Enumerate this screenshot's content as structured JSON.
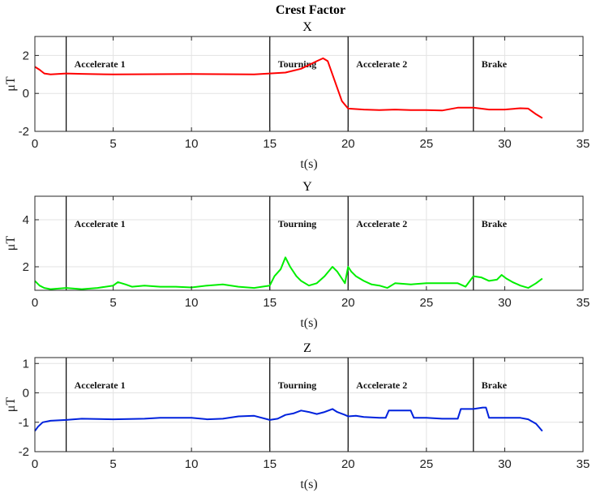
{
  "title": "Crest Factor",
  "chart_data": [
    {
      "type": "line",
      "subplot_title": "X",
      "xlabel": "t(s)",
      "ylabel": "μT",
      "xlim": [
        0,
        35
      ],
      "ylim": [
        -2,
        3
      ],
      "xticks": [
        0,
        5,
        10,
        15,
        20,
        25,
        30,
        35
      ],
      "yticks": [
        -2,
        0,
        2
      ],
      "grid": true,
      "color": "#ff0000",
      "vlines": [
        2,
        15,
        20,
        28
      ],
      "annotations": [
        "Accelerate 1",
        "Tourning",
        "Accelerate 2",
        "Brake"
      ],
      "x": [
        0,
        0.3,
        0.6,
        1,
        2,
        3,
        5,
        10,
        14,
        15,
        16,
        17,
        17.5,
        18,
        18.4,
        18.7,
        19,
        19.3,
        19.6,
        20,
        21,
        22,
        23,
        24,
        25,
        26,
        27,
        28,
        29,
        30,
        31,
        31.5,
        32,
        32.4
      ],
      "y": [
        1.4,
        1.25,
        1.05,
        1.0,
        1.05,
        1.03,
        1.0,
        1.02,
        1.0,
        1.05,
        1.1,
        1.3,
        1.5,
        1.7,
        1.85,
        1.7,
        1.0,
        0.3,
        -0.4,
        -0.8,
        -0.85,
        -0.88,
        -0.85,
        -0.88,
        -0.88,
        -0.9,
        -0.75,
        -0.75,
        -0.85,
        -0.85,
        -0.78,
        -0.8,
        -1.1,
        -1.3
      ]
    },
    {
      "type": "line",
      "subplot_title": "Y",
      "xlabel": "t(s)",
      "ylabel": "μT",
      "xlim": [
        0,
        35
      ],
      "ylim": [
        1,
        5
      ],
      "xticks": [
        0,
        5,
        10,
        15,
        20,
        25,
        30,
        35
      ],
      "yticks": [
        2,
        4
      ],
      "grid": true,
      "color": "#00ee00",
      "vlines": [
        2,
        15,
        20,
        28
      ],
      "annotations": [
        "Accelerate 1",
        "Tourning",
        "Accelerate 2",
        "Brake"
      ],
      "x": [
        0,
        0.3,
        0.6,
        1,
        2,
        3,
        4,
        5,
        5.3,
        5.8,
        6.2,
        7,
        8,
        9,
        10,
        11,
        12,
        13,
        14,
        14.5,
        15,
        15.3,
        15.7,
        16.0,
        16.3,
        16.7,
        17,
        17.5,
        18,
        18.5,
        19,
        19.3,
        19.6,
        19.8,
        20,
        20.2,
        20.5,
        21,
        21.5,
        22,
        22.5,
        23,
        24,
        25,
        26,
        27,
        27.5,
        28,
        28.5,
        29,
        29.5,
        29.8,
        30.1,
        30.5,
        31,
        31.5,
        32,
        32.4
      ],
      "y": [
        1.4,
        1.2,
        1.1,
        1.05,
        1.1,
        1.05,
        1.1,
        1.2,
        1.35,
        1.25,
        1.15,
        1.2,
        1.15,
        1.15,
        1.12,
        1.2,
        1.25,
        1.15,
        1.1,
        1.15,
        1.2,
        1.6,
        1.9,
        2.4,
        2.0,
        1.6,
        1.4,
        1.2,
        1.3,
        1.6,
        2.0,
        1.8,
        1.5,
        1.3,
        2.0,
        1.8,
        1.6,
        1.4,
        1.25,
        1.2,
        1.1,
        1.3,
        1.25,
        1.3,
        1.3,
        1.3,
        1.15,
        1.6,
        1.55,
        1.4,
        1.45,
        1.65,
        1.5,
        1.35,
        1.2,
        1.1,
        1.3,
        1.5
      ]
    },
    {
      "type": "line",
      "subplot_title": "Z",
      "xlabel": "t(s)",
      "ylabel": "μT",
      "xlim": [
        0,
        35
      ],
      "ylim": [
        -2,
        1.2
      ],
      "xticks": [
        0,
        5,
        10,
        15,
        20,
        25,
        30,
        35
      ],
      "yticks": [
        -2,
        -1,
        0,
        1
      ],
      "grid": true,
      "color": "#0022dd",
      "vlines": [
        2,
        15,
        20,
        28
      ],
      "annotations": [
        "Accelerate 1",
        "Tourning",
        "Accelerate 2",
        "Brake"
      ],
      "x": [
        0,
        0.2,
        0.5,
        1,
        2,
        3,
        5,
        7,
        8,
        10,
        11,
        12,
        13,
        14,
        15,
        15.5,
        16,
        16.5,
        17,
        17.5,
        18,
        18.5,
        19,
        19.3,
        19.8,
        20,
        20.5,
        21,
        22,
        22.4,
        22.6,
        24,
        24.2,
        25,
        26,
        27,
        27.2,
        28,
        28.6,
        28.8,
        29,
        30,
        31,
        31.5,
        32,
        32.4
      ],
      "y": [
        -1.3,
        -1.15,
        -1.0,
        -0.95,
        -0.92,
        -0.88,
        -0.9,
        -0.88,
        -0.85,
        -0.85,
        -0.9,
        -0.88,
        -0.8,
        -0.78,
        -0.92,
        -0.88,
        -0.75,
        -0.7,
        -0.6,
        -0.65,
        -0.72,
        -0.65,
        -0.55,
        -0.65,
        -0.75,
        -0.8,
        -0.78,
        -0.82,
        -0.85,
        -0.85,
        -0.6,
        -0.6,
        -0.85,
        -0.85,
        -0.88,
        -0.88,
        -0.55,
        -0.55,
        -0.5,
        -0.5,
        -0.85,
        -0.85,
        -0.85,
        -0.9,
        -1.05,
        -1.3
      ]
    }
  ]
}
